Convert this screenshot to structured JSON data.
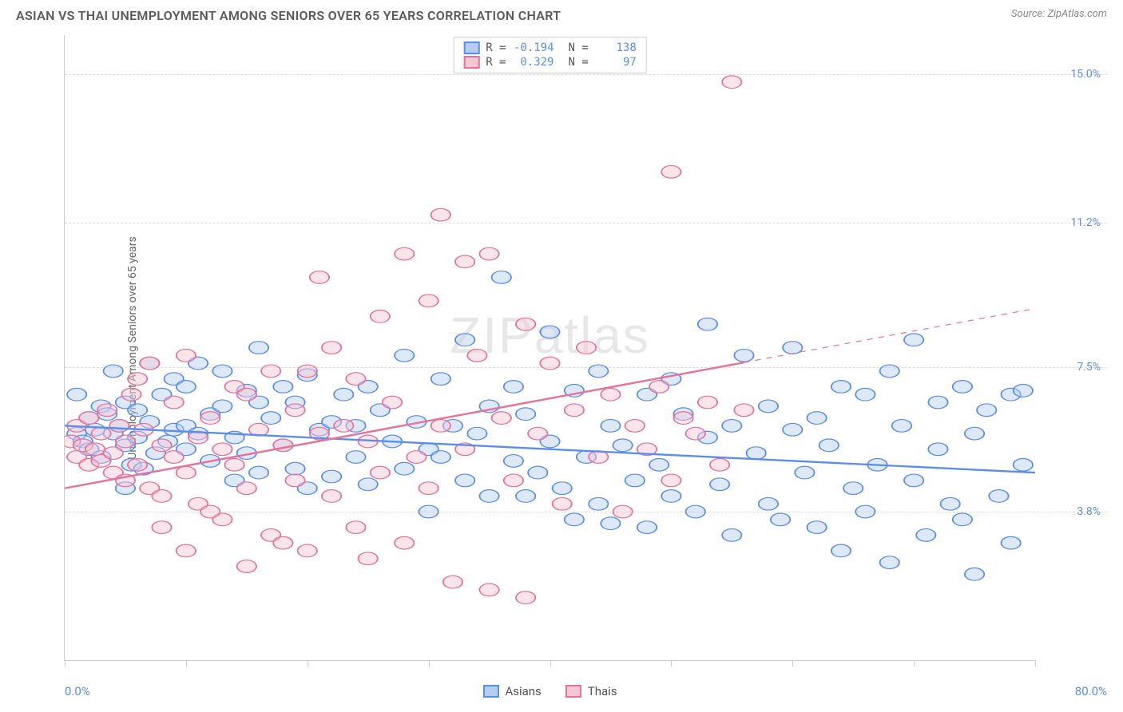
{
  "header": {
    "title": "ASIAN VS THAI UNEMPLOYMENT AMONG SENIORS OVER 65 YEARS CORRELATION CHART",
    "source": "Source: ZipAtlas.com"
  },
  "watermark": {
    "part1": "ZIP",
    "part2": "atlas"
  },
  "chart": {
    "type": "scatter",
    "xlim": [
      0,
      80
    ],
    "ylim": [
      0,
      16
    ],
    "x_tick_positions": [
      0,
      10,
      20,
      30,
      40,
      50,
      60,
      70,
      80
    ],
    "y_gridlines": [
      3.8,
      7.5,
      11.2,
      15.0
    ],
    "y_tick_labels": [
      "3.8%",
      "7.5%",
      "11.2%",
      "15.0%"
    ],
    "x_min_label": "0.0%",
    "x_max_label": "80.0%",
    "ylabel": "Unemployment Among Seniors over 65 years",
    "background_color": "#ffffff",
    "grid_color": "#dddddd",
    "axis_color": "#cccccc",
    "tick_label_color": "#5b8def",
    "ylabel_fontsize": 14,
    "marker_radius": 10,
    "marker_opacity": 0.45,
    "stats_box": {
      "rows": [
        {
          "swatch_fill": "#b3cef1",
          "swatch_border": "#5b8def",
          "r_label": "R =",
          "r_value": "-0.194",
          "n_label": "N =",
          "n_value": "138"
        },
        {
          "swatch_fill": "#f6c6d2",
          "swatch_border": "#e57399",
          "r_label": "R =",
          "r_value": "0.329",
          "n_label": "N =",
          "n_value": "97"
        }
      ]
    },
    "legend": [
      {
        "swatch_fill": "#b3cef1",
        "swatch_border": "#5b8def",
        "label": "Asians"
      },
      {
        "swatch_fill": "#f6c6d2",
        "swatch_border": "#e57399",
        "label": "Thais"
      }
    ],
    "series": [
      {
        "name": "Asians",
        "fill": "#b3cef1",
        "stroke": "#5b8def",
        "trend": {
          "y_at_xmin": 6.0,
          "y_at_xmax": 4.8,
          "width": 3,
          "dash_from_x": null
        },
        "points": [
          [
            1,
            6.8
          ],
          [
            1,
            5.8
          ],
          [
            1.5,
            5.6
          ],
          [
            2,
            6.2
          ],
          [
            2,
            5.4
          ],
          [
            2.5,
            5.9
          ],
          [
            3,
            6.5
          ],
          [
            3,
            5.2
          ],
          [
            3.5,
            6.3
          ],
          [
            4,
            5.8
          ],
          [
            4,
            7.4
          ],
          [
            4.5,
            6.0
          ],
          [
            5,
            5.5
          ],
          [
            5,
            6.6
          ],
          [
            5.5,
            5.0
          ],
          [
            6,
            6.4
          ],
          [
            6,
            5.7
          ],
          [
            6.5,
            4.9
          ],
          [
            7,
            6.1
          ],
          [
            7,
            7.6
          ],
          [
            7.5,
            5.3
          ],
          [
            8,
            6.8
          ],
          [
            8.5,
            5.6
          ],
          [
            9,
            5.9
          ],
          [
            9,
            7.2
          ],
          [
            10,
            6.0
          ],
          [
            10,
            5.4
          ],
          [
            11,
            7.6
          ],
          [
            11,
            5.8
          ],
          [
            12,
            6.3
          ],
          [
            12,
            5.1
          ],
          [
            13,
            7.4
          ],
          [
            13,
            6.5
          ],
          [
            14,
            5.7
          ],
          [
            15,
            6.9
          ],
          [
            15,
            5.3
          ],
          [
            16,
            8.0
          ],
          [
            16,
            4.8
          ],
          [
            17,
            6.2
          ],
          [
            18,
            7.0
          ],
          [
            18,
            5.5
          ],
          [
            19,
            6.6
          ],
          [
            20,
            4.4
          ],
          [
            20,
            7.3
          ],
          [
            21,
            5.9
          ],
          [
            22,
            6.1
          ],
          [
            22,
            4.7
          ],
          [
            23,
            6.8
          ],
          [
            24,
            5.2
          ],
          [
            25,
            7.0
          ],
          [
            25,
            4.5
          ],
          [
            26,
            6.4
          ],
          [
            27,
            5.6
          ],
          [
            28,
            7.8
          ],
          [
            28,
            4.9
          ],
          [
            29,
            6.1
          ],
          [
            30,
            5.4
          ],
          [
            30,
            3.8
          ],
          [
            31,
            7.2
          ],
          [
            32,
            6.0
          ],
          [
            33,
            4.6
          ],
          [
            33,
            8.2
          ],
          [
            34,
            5.8
          ],
          [
            35,
            6.5
          ],
          [
            35,
            4.2
          ],
          [
            36,
            9.8
          ],
          [
            37,
            5.1
          ],
          [
            37,
            7.0
          ],
          [
            38,
            6.3
          ],
          [
            39,
            4.8
          ],
          [
            40,
            5.6
          ],
          [
            40,
            8.4
          ],
          [
            41,
            4.4
          ],
          [
            42,
            6.9
          ],
          [
            42,
            3.6
          ],
          [
            43,
            5.2
          ],
          [
            44,
            7.4
          ],
          [
            44,
            4.0
          ],
          [
            45,
            6.0
          ],
          [
            46,
            5.5
          ],
          [
            47,
            4.6
          ],
          [
            48,
            6.8
          ],
          [
            48,
            3.4
          ],
          [
            49,
            5.0
          ],
          [
            50,
            7.2
          ],
          [
            50,
            4.2
          ],
          [
            51,
            6.3
          ],
          [
            52,
            3.8
          ],
          [
            53,
            5.7
          ],
          [
            53,
            8.6
          ],
          [
            54,
            4.5
          ],
          [
            55,
            6.0
          ],
          [
            55,
            3.2
          ],
          [
            56,
            7.8
          ],
          [
            57,
            5.3
          ],
          [
            58,
            4.0
          ],
          [
            58,
            6.5
          ],
          [
            59,
            3.6
          ],
          [
            60,
            5.9
          ],
          [
            60,
            8.0
          ],
          [
            61,
            4.8
          ],
          [
            62,
            6.2
          ],
          [
            62,
            3.4
          ],
          [
            63,
            5.5
          ],
          [
            64,
            7.0
          ],
          [
            64,
            2.8
          ],
          [
            65,
            4.4
          ],
          [
            66,
            6.8
          ],
          [
            66,
            3.8
          ],
          [
            67,
            5.0
          ],
          [
            68,
            7.4
          ],
          [
            68,
            2.5
          ],
          [
            69,
            6.0
          ],
          [
            70,
            4.6
          ],
          [
            70,
            8.2
          ],
          [
            71,
            3.2
          ],
          [
            72,
            5.4
          ],
          [
            72,
            6.6
          ],
          [
            73,
            4.0
          ],
          [
            74,
            7.0
          ],
          [
            74,
            3.6
          ],
          [
            75,
            5.8
          ],
          [
            75,
            2.2
          ],
          [
            76,
            6.4
          ],
          [
            77,
            4.2
          ],
          [
            78,
            6.8
          ],
          [
            78,
            3.0
          ],
          [
            79,
            5.0
          ],
          [
            79,
            6.9
          ],
          [
            5,
            4.4
          ],
          [
            10,
            7.0
          ],
          [
            14,
            4.6
          ],
          [
            19,
            4.9
          ],
          [
            24,
            6.0
          ],
          [
            31,
            5.2
          ],
          [
            38,
            4.2
          ],
          [
            45,
            3.5
          ],
          [
            16,
            6.6
          ]
        ]
      },
      {
        "name": "Thais",
        "fill": "#f6c6d2",
        "stroke": "#e57399",
        "trend": {
          "y_at_xmin": 4.4,
          "y_at_xmax": 9.0,
          "width": 3,
          "dash_from_x": 56
        },
        "points": [
          [
            0.5,
            5.6
          ],
          [
            1,
            5.2
          ],
          [
            1,
            6.0
          ],
          [
            1.5,
            5.5
          ],
          [
            2,
            5.0
          ],
          [
            2,
            6.2
          ],
          [
            2.5,
            5.4
          ],
          [
            3,
            5.8
          ],
          [
            3,
            5.1
          ],
          [
            3.5,
            6.4
          ],
          [
            4,
            5.3
          ],
          [
            4,
            4.8
          ],
          [
            4.5,
            6.0
          ],
          [
            5,
            5.6
          ],
          [
            5,
            4.6
          ],
          [
            5.5,
            6.8
          ],
          [
            6,
            5.0
          ],
          [
            6.5,
            5.9
          ],
          [
            7,
            4.4
          ],
          [
            7,
            7.6
          ],
          [
            8,
            5.5
          ],
          [
            8,
            4.2
          ],
          [
            9,
            6.6
          ],
          [
            9,
            5.2
          ],
          [
            10,
            4.8
          ],
          [
            10,
            7.8
          ],
          [
            11,
            5.7
          ],
          [
            11,
            4.0
          ],
          [
            12,
            6.2
          ],
          [
            13,
            5.4
          ],
          [
            13,
            3.6
          ],
          [
            14,
            7.0
          ],
          [
            14,
            5.0
          ],
          [
            15,
            6.8
          ],
          [
            15,
            4.4
          ],
          [
            16,
            5.9
          ],
          [
            17,
            3.2
          ],
          [
            17,
            7.4
          ],
          [
            18,
            5.5
          ],
          [
            19,
            4.6
          ],
          [
            19,
            6.4
          ],
          [
            20,
            2.8
          ],
          [
            21,
            5.8
          ],
          [
            21,
            9.8
          ],
          [
            22,
            4.2
          ],
          [
            23,
            6.0
          ],
          [
            24,
            7.2
          ],
          [
            24,
            3.4
          ],
          [
            25,
            5.6
          ],
          [
            26,
            8.8
          ],
          [
            26,
            4.8
          ],
          [
            27,
            6.6
          ],
          [
            28,
            10.4
          ],
          [
            28,
            3.0
          ],
          [
            29,
            5.2
          ],
          [
            30,
            9.2
          ],
          [
            30,
            4.4
          ],
          [
            31,
            11.4
          ],
          [
            31,
            6.0
          ],
          [
            32,
            2.0
          ],
          [
            33,
            10.2
          ],
          [
            33,
            5.4
          ],
          [
            34,
            7.8
          ],
          [
            35,
            10.4
          ],
          [
            35,
            1.8
          ],
          [
            36,
            6.2
          ],
          [
            37,
            4.6
          ],
          [
            38,
            1.6
          ],
          [
            38,
            8.6
          ],
          [
            39,
            5.8
          ],
          [
            40,
            7.6
          ],
          [
            41,
            4.0
          ],
          [
            42,
            6.4
          ],
          [
            43,
            8.0
          ],
          [
            44,
            5.2
          ],
          [
            45,
            6.8
          ],
          [
            46,
            3.8
          ],
          [
            47,
            6.0
          ],
          [
            48,
            5.4
          ],
          [
            49,
            7.0
          ],
          [
            50,
            12.5
          ],
          [
            50,
            4.6
          ],
          [
            51,
            6.2
          ],
          [
            52,
            5.8
          ],
          [
            53,
            6.6
          ],
          [
            54,
            5.0
          ],
          [
            55,
            14.8
          ],
          [
            56,
            6.4
          ],
          [
            15,
            2.4
          ],
          [
            20,
            7.4
          ],
          [
            25,
            2.6
          ],
          [
            12,
            3.8
          ],
          [
            6,
            7.2
          ],
          [
            8,
            3.4
          ],
          [
            10,
            2.8
          ],
          [
            18,
            3.0
          ],
          [
            22,
            8.0
          ]
        ]
      }
    ]
  }
}
